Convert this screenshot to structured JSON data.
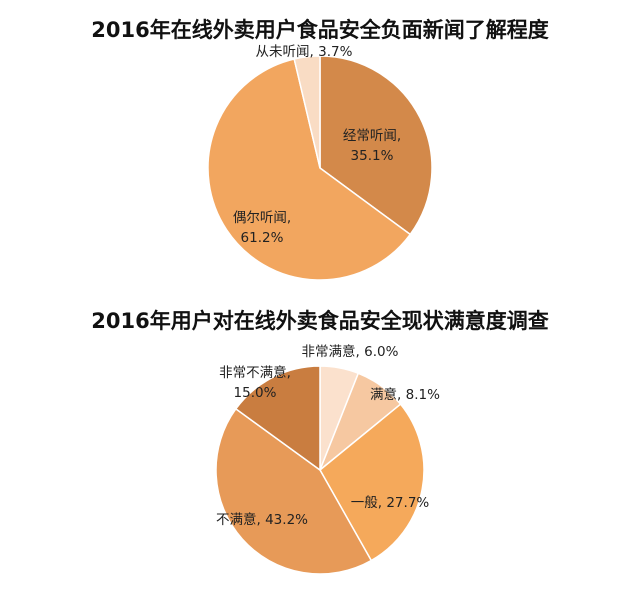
{
  "chart_data": [
    {
      "type": "pie",
      "title": "2016年在线外卖用户食品安全负面新闻了解程度",
      "slices": [
        {
          "label": "经常听闻",
          "value": 35.1,
          "display": "35.1%",
          "color": "#d3894a"
        },
        {
          "label": "偶尔听闻",
          "value": 61.2,
          "display": "61.2%",
          "color": "#f2a65f"
        },
        {
          "label": "从未听闻",
          "value": 3.7,
          "display": "3.7%",
          "color": "#f9dcc4"
        }
      ]
    },
    {
      "type": "pie",
      "title": "2016年用户对在线外卖食品安全现状满意度调查",
      "slices": [
        {
          "label": "非常满意",
          "value": 6.0,
          "display": "6.0%",
          "color": "#fbe1cd"
        },
        {
          "label": "满意",
          "value": 8.1,
          "display": "8.1%",
          "color": "#f6c8a1"
        },
        {
          "label": "一般",
          "value": 27.7,
          "display": "27.7%",
          "color": "#f5a95b"
        },
        {
          "label": "不满意",
          "value": 43.2,
          "display": "43.2%",
          "color": "#e79a58"
        },
        {
          "label": "非常不满意",
          "value": 15.0,
          "display": "15.0%",
          "color": "#c97d40"
        }
      ]
    }
  ]
}
